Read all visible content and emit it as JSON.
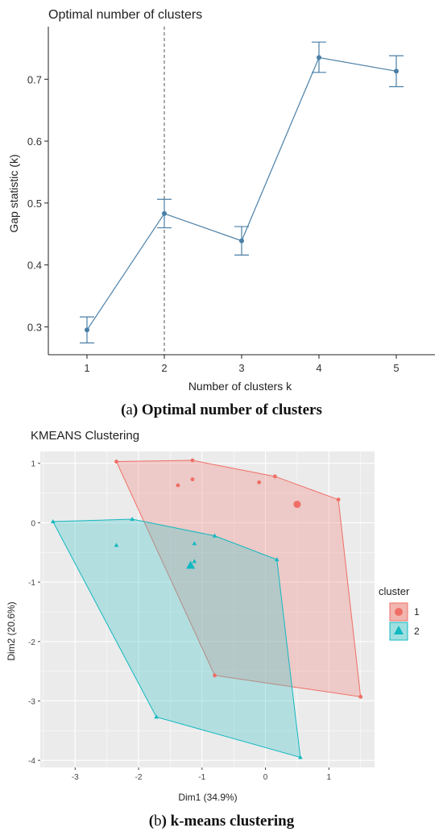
{
  "captions": {
    "a_prefix": "(",
    "a_letter": "a",
    "a_text": ") Optimal number of clusters",
    "b_prefix": "(",
    "b_letter": "b",
    "b_text": ") k-means clustering"
  },
  "colors": {
    "gap_line": "#4a7fa7",
    "cluster1_fill": "#f08a84",
    "cluster1_line": "#ef6f66",
    "cluster2_fill": "#48c6c8",
    "cluster2_line": "#13b8c0",
    "panel_bg": "#ebebeb",
    "grid": "#ffffff"
  },
  "chart_data": [
    {
      "type": "line",
      "title": "Optimal number of clusters",
      "xlabel": "Number of clusters k",
      "ylabel": "Gap statistic (k)",
      "x": [
        1,
        2,
        3,
        4,
        5
      ],
      "x_ticks": [
        "1",
        "2",
        "3",
        "4",
        "5"
      ],
      "y_ticks": [
        "0.3",
        "0.4",
        "0.5",
        "0.6",
        "0.7"
      ],
      "xlim": [
        0.5,
        5.5
      ],
      "ylim": [
        0.255,
        0.785
      ],
      "series": [
        {
          "values": [
            0.295,
            0.483,
            0.439,
            0.735,
            0.713
          ],
          "err_low": [
            0.274,
            0.46,
            0.416,
            0.711,
            0.688
          ],
          "err_high": [
            0.316,
            0.506,
            0.462,
            0.76,
            0.738
          ]
        }
      ],
      "vline_x": 2,
      "grid": false
    },
    {
      "type": "scatter",
      "title": "KMEANS Clustering",
      "xlabel": "Dim1 (34.9%)",
      "ylabel": "Dim2 (20.6%)",
      "x_ticks": [
        -3,
        -2,
        -1,
        0,
        1
      ],
      "x_tick_labels": [
        "-3",
        "-2",
        "-1",
        "0",
        "1"
      ],
      "y_ticks": [
        1,
        0,
        -1,
        -2,
        -3,
        -4
      ],
      "y_tick_labels": [
        "1",
        "0",
        "-1",
        "-2",
        "-3",
        "-4"
      ],
      "xlim": [
        -3.55,
        1.72
      ],
      "ylim": [
        -4.12,
        1.2
      ],
      "grid": true,
      "legend": {
        "title": "cluster",
        "position": "right",
        "entries": [
          "1",
          "2"
        ]
      },
      "clusters": [
        {
          "name": "1",
          "points": [
            [
              -2.35,
              1.03
            ],
            [
              -1.15,
              1.05
            ],
            [
              -1.38,
              0.63
            ],
            [
              -1.15,
              0.73
            ],
            [
              -0.1,
              0.68
            ],
            [
              0.15,
              0.78
            ],
            [
              1.15,
              0.39
            ],
            [
              -0.8,
              -2.57
            ],
            [
              1.5,
              -2.93
            ]
          ],
          "center": [
            0.5,
            0.31
          ],
          "hull": [
            [
              -2.35,
              1.03
            ],
            [
              -1.15,
              1.05
            ],
            [
              0.15,
              0.78
            ],
            [
              1.15,
              0.39
            ],
            [
              1.5,
              -2.93
            ],
            [
              -0.8,
              -2.57
            ]
          ]
        },
        {
          "name": "2",
          "points": [
            [
              -3.35,
              0.02
            ],
            [
              -2.35,
              -0.38
            ],
            [
              -2.1,
              0.06
            ],
            [
              -1.12,
              -0.35
            ],
            [
              -1.12,
              -0.65
            ],
            [
              -0.8,
              -0.22
            ],
            [
              0.18,
              -0.62
            ],
            [
              -1.72,
              -3.27
            ],
            [
              0.55,
              -3.95
            ]
          ],
          "center": [
            -1.18,
            -0.72
          ],
          "hull": [
            [
              -3.35,
              0.02
            ],
            [
              -2.1,
              0.06
            ],
            [
              -0.8,
              -0.22
            ],
            [
              0.18,
              -0.62
            ],
            [
              0.55,
              -3.95
            ],
            [
              -1.72,
              -3.27
            ]
          ]
        }
      ]
    }
  ]
}
